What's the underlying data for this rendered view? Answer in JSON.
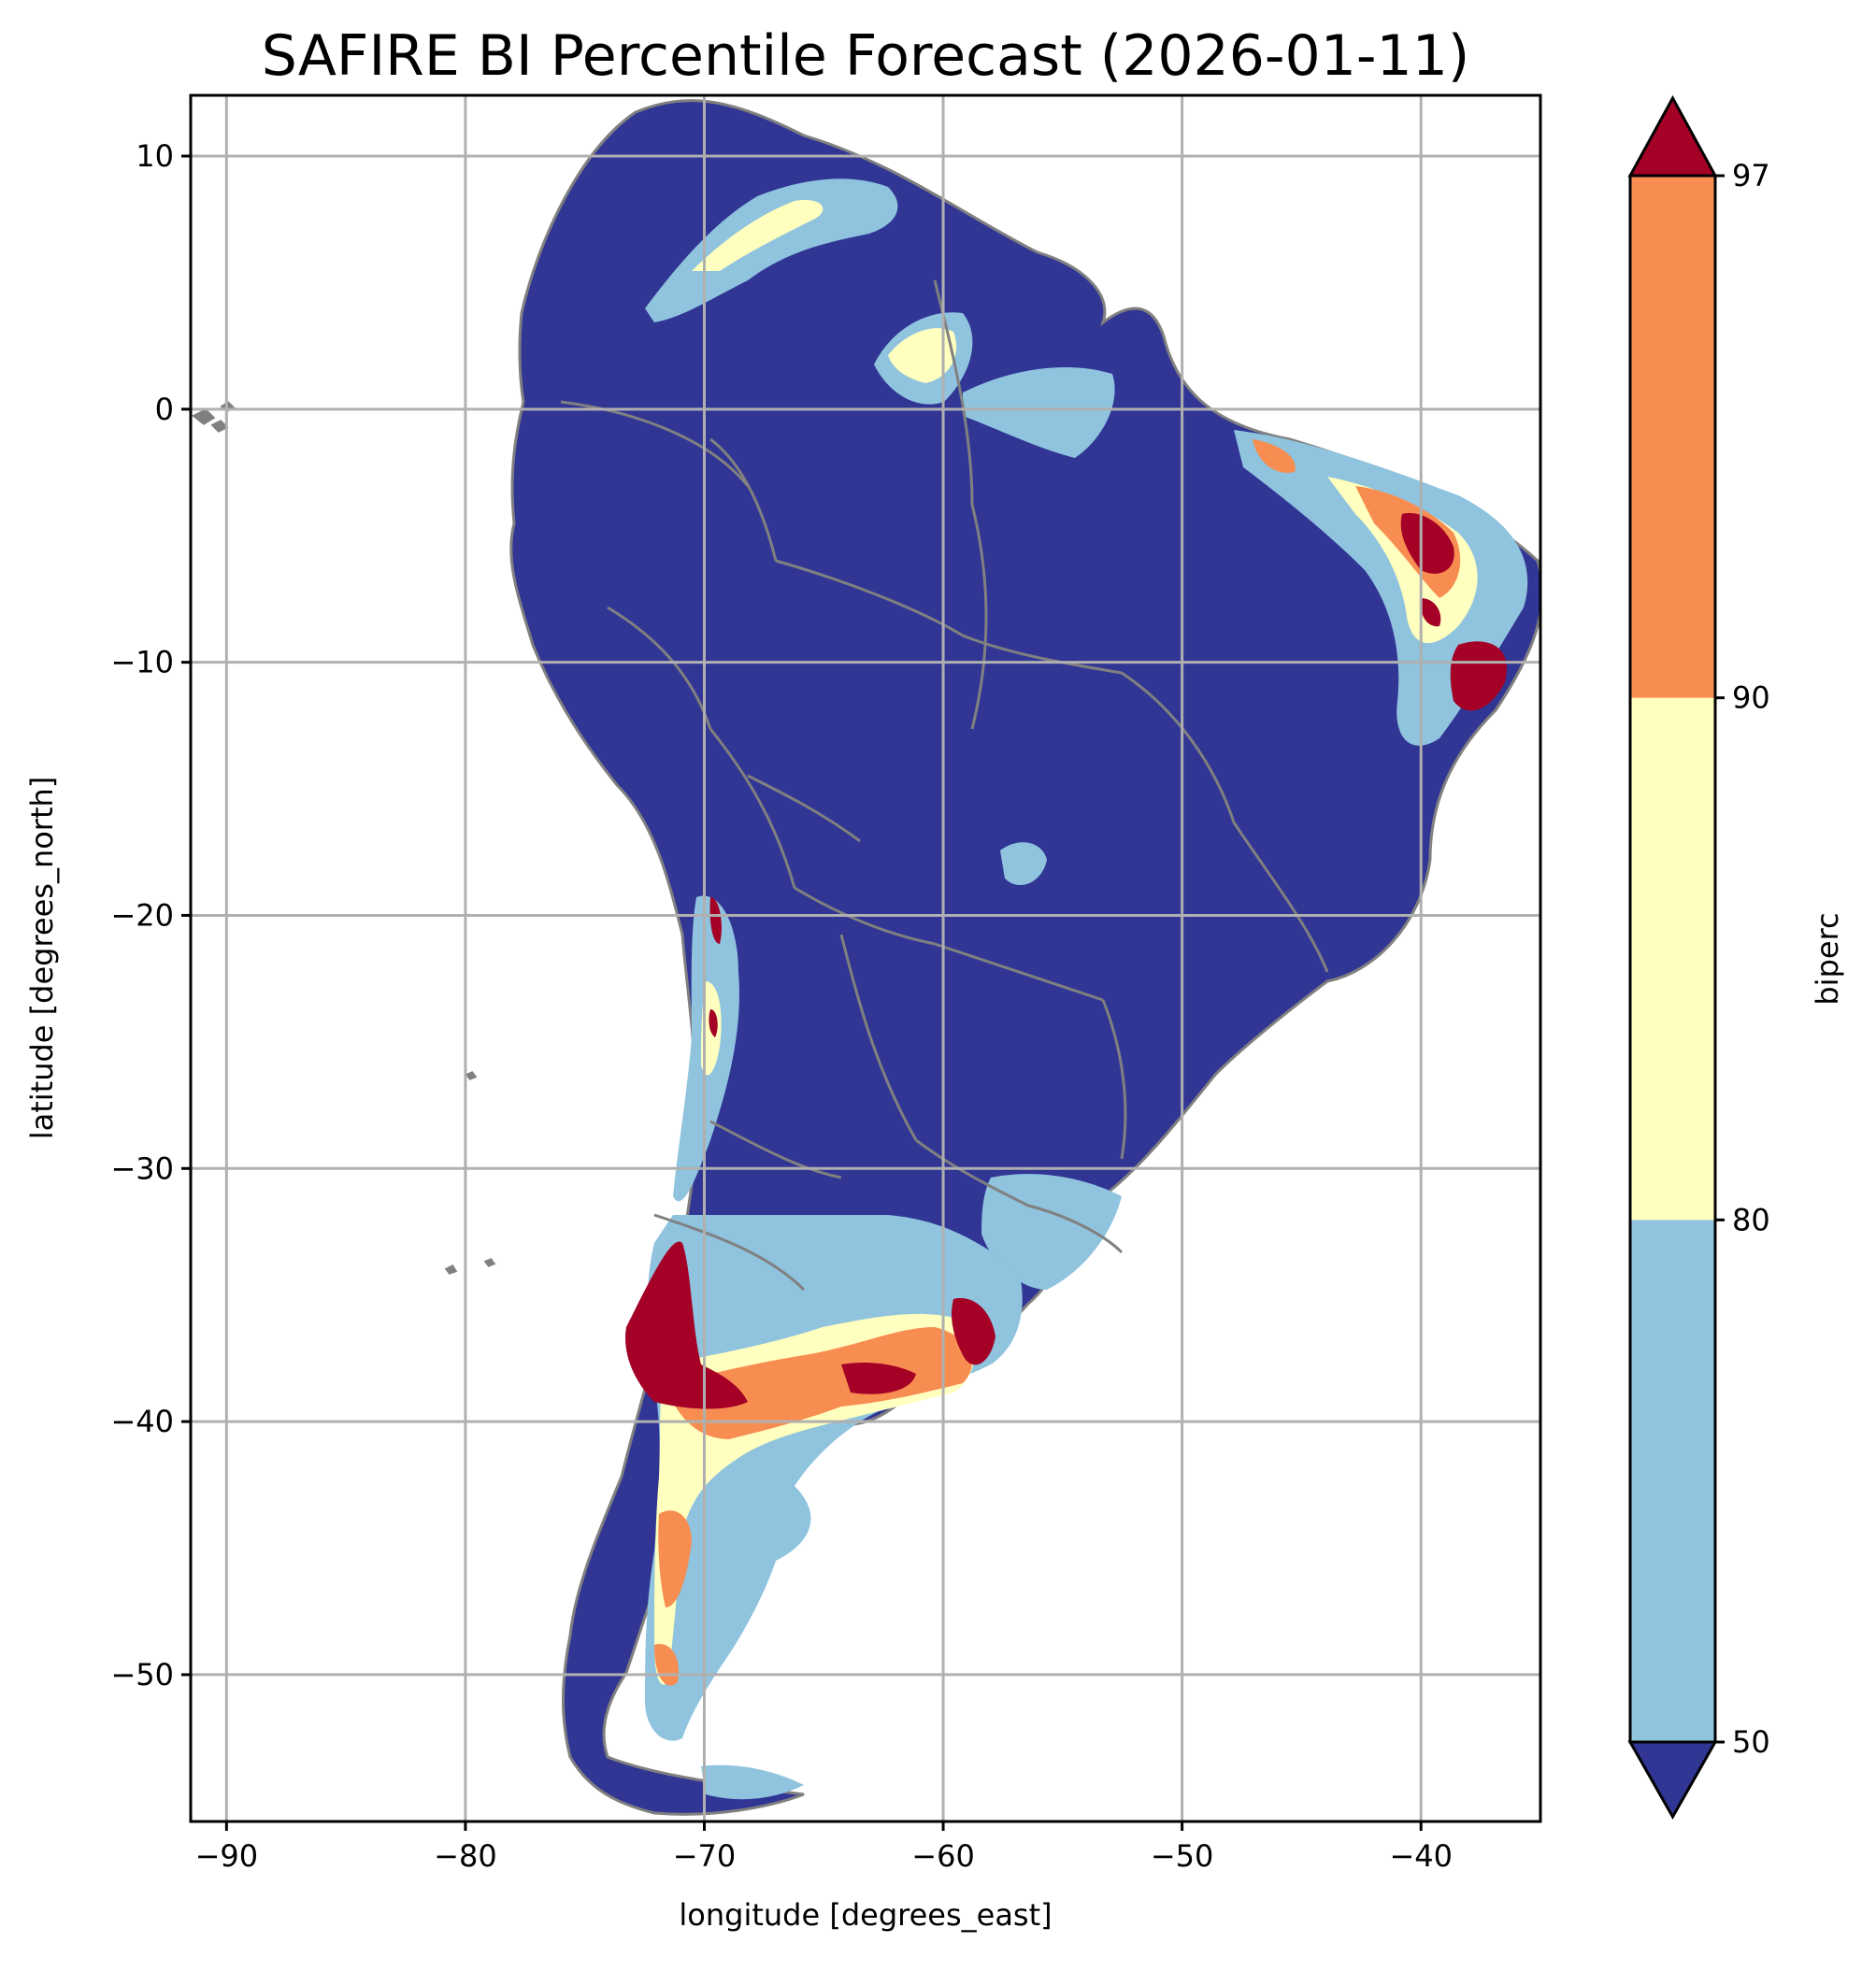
{
  "title": "SAFIRE BI Percentile Forecast (2026-01-11)",
  "map": {
    "type": "choropleth",
    "region": "South America",
    "x_axis": {
      "label": "longitude [degrees_east]",
      "range": [
        -91.5,
        -35
      ],
      "ticks": [
        -90,
        -80,
        -70,
        -60,
        -50,
        -40
      ],
      "tick_labels": [
        "−90",
        "−80",
        "−70",
        "−60",
        "−50",
        "−40"
      ]
    },
    "y_axis": {
      "label": "latitude [degrees_north]",
      "range": [
        -55.8,
        12.4
      ],
      "ticks": [
        10,
        0,
        -10,
        -20,
        -30,
        -40,
        -50
      ],
      "tick_labels": [
        "10",
        "0",
        "−10",
        "−20",
        "−30",
        "−40",
        "−50"
      ]
    },
    "grid": true,
    "land_outline_color": "#808080",
    "ocean_color": "#ffffff"
  },
  "colorbar": {
    "label": "biperc",
    "orientation": "vertical",
    "extend": "both",
    "ticks": [
      50,
      80,
      90,
      97
    ],
    "tick_labels": [
      "50",
      "80",
      "90",
      "97"
    ],
    "under_color": "#313695",
    "over_color": "#a50026",
    "bins": [
      {
        "from": 50,
        "to": 80,
        "color": "#8fc3de"
      },
      {
        "from": 80,
        "to": 90,
        "color": "#ffffbf"
      },
      {
        "from": 90,
        "to": 97,
        "color": "#f88d52"
      }
    ]
  },
  "colors": {
    "below_50": "#313695",
    "p50_80": "#8fc3de",
    "p80_90": "#ffffbf",
    "p90_97": "#f88d52",
    "above_97": "#a50026",
    "borders": "#808080"
  }
}
